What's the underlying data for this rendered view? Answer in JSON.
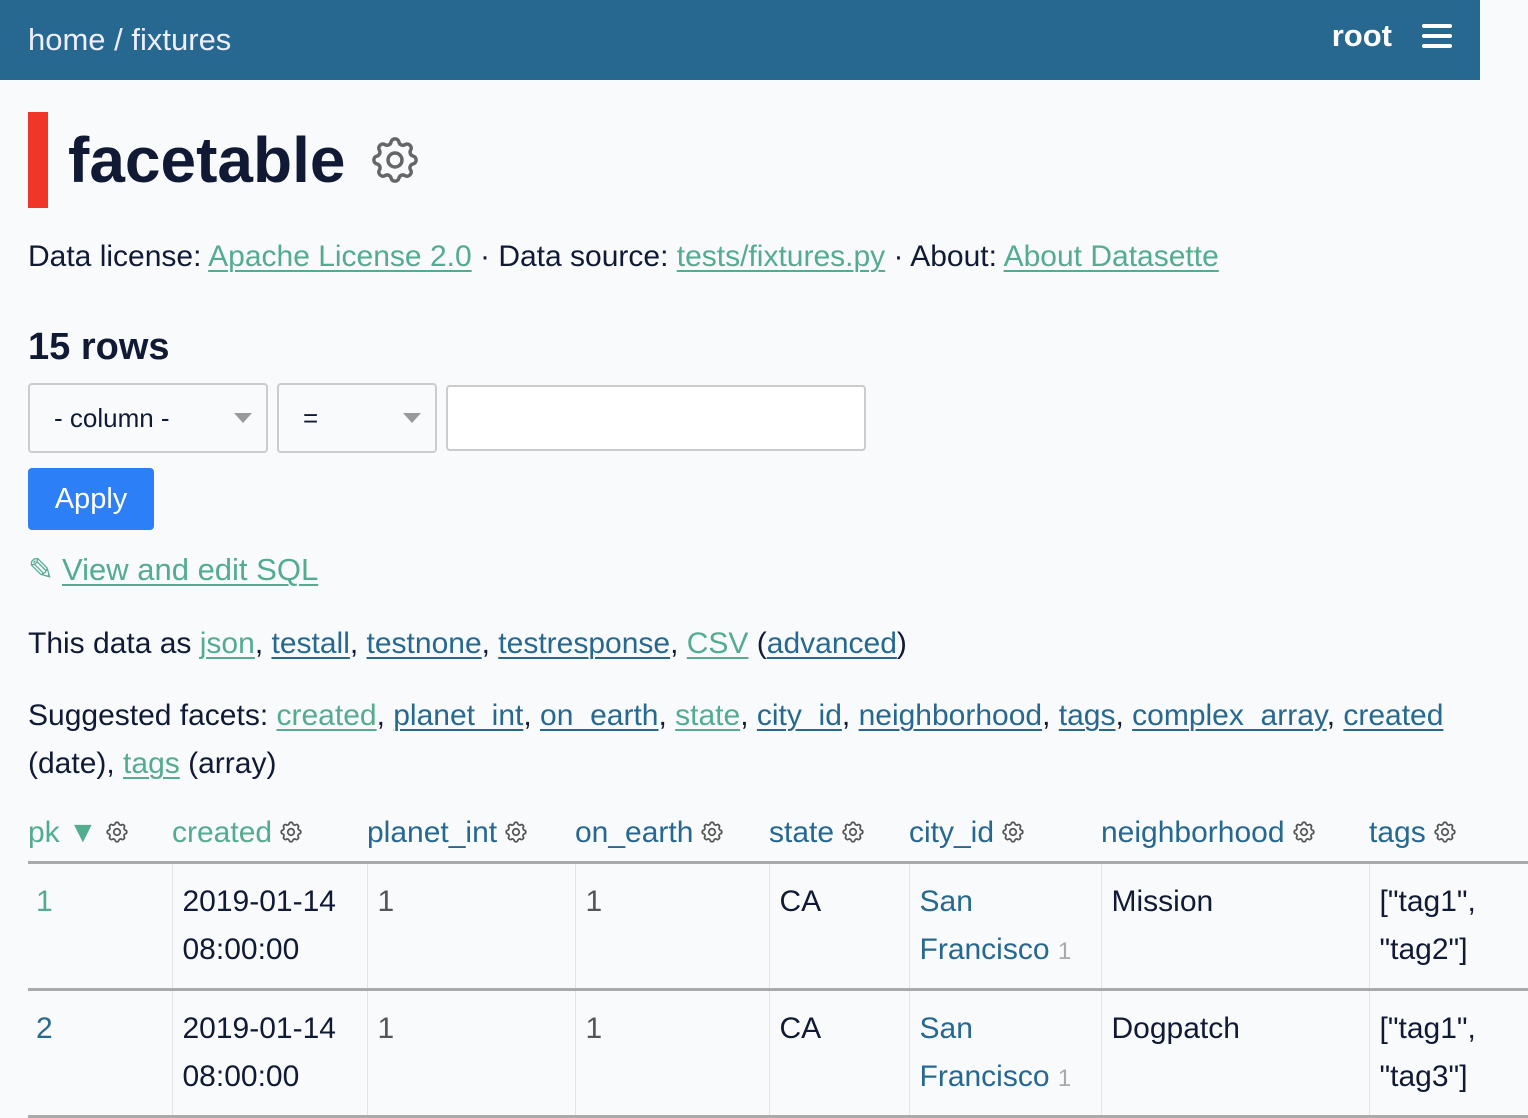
{
  "header": {
    "breadcrumb": [
      {
        "label": "home"
      },
      {
        "label": "fixtures"
      }
    ],
    "separator": " / ",
    "user": "root",
    "menu_icon": "hamburger-icon"
  },
  "page": {
    "title": "facetable",
    "accent": "#ef3628"
  },
  "metadata": {
    "license_label": "Data license:",
    "license": "Apache License 2.0",
    "source_label": "Data source:",
    "source": "tests/fixtures.py",
    "about_label": "About:",
    "about": "About Datasette",
    "dot": " · "
  },
  "row_count": "15 rows",
  "filter": {
    "column": "- column -",
    "op": "=",
    "value": "",
    "apply": "Apply"
  },
  "sql_link": "View and edit SQL",
  "export": {
    "prefix": "This data as ",
    "links": [
      "json",
      "testall",
      "testnone",
      "testresponse",
      "CSV"
    ],
    "advanced": "advanced"
  },
  "facets": {
    "prefix": "Suggested facets: ",
    "links": [
      "created",
      "planet_int",
      "on_earth",
      "state",
      "city_id",
      "neighborhood",
      "tags",
      "complex_array"
    ],
    "date_link": "created",
    "date_suffix": " (date)",
    "array_link": "tags",
    "array_suffix": " (array)"
  },
  "colors": {
    "header": "#276890",
    "link": "#276890",
    "visited": "#54ac8e",
    "button": "#2c7ff6"
  },
  "table": {
    "columns": [
      "pk",
      "created",
      "planet_int",
      "on_earth",
      "state",
      "city_id",
      "neighborhood",
      "tags"
    ],
    "sort_indicator": "▼",
    "rows": [
      {
        "pk": "1",
        "created": "2019-01-14 08:00:00",
        "planet_int": "1",
        "on_earth": "1",
        "state": "CA",
        "city": "San Francisco",
        "city_id": "1",
        "neighborhood": "Mission",
        "tags": "[\"tag1\", \"tag2\"]"
      },
      {
        "pk": "2",
        "created": "2019-01-14 08:00:00",
        "planet_int": "1",
        "on_earth": "1",
        "state": "CA",
        "city": "San Francisco",
        "city_id": "1",
        "neighborhood": "Dogpatch",
        "tags": "[\"tag1\", \"tag3\"]"
      }
    ]
  }
}
